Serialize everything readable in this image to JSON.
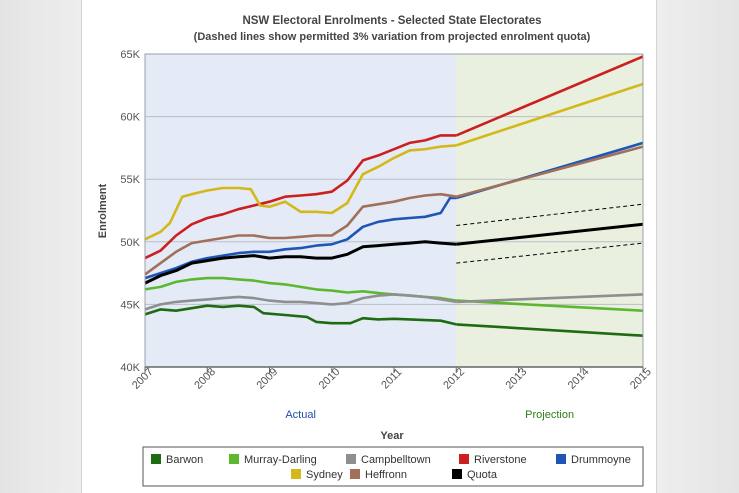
{
  "chart_data": {
    "type": "line",
    "title": "NSW Electoral Enrolments - Selected State Electorates",
    "subtitle": "(Dashed lines show permitted 3% variation from projected enrolment quota)",
    "xlabel": "Year",
    "ylabel": "Enrolment",
    "xlim": [
      2007,
      2015
    ],
    "ylim": [
      40000,
      65000
    ],
    "x_ticks": [
      "2007",
      "2008",
      "2009",
      "2010",
      "2011",
      "2012",
      "2013",
      "2014",
      "2015"
    ],
    "y_ticks": [
      "40K",
      "45K",
      "50K",
      "55K",
      "60K",
      "65K"
    ],
    "regions": [
      {
        "name": "Actual",
        "from": 2007,
        "to": 2012,
        "color": "#e4ebf7",
        "label_color": "#1f4fa8"
      },
      {
        "name": "Projection",
        "from": 2012,
        "to": 2015,
        "color": "#e9f0e0",
        "label_color": "#2e7d1a"
      }
    ],
    "series": [
      {
        "name": "Barwon",
        "color": "#1e6b12",
        "actual": [
          [
            2007,
            44200
          ],
          [
            2007.25,
            44600
          ],
          [
            2007.5,
            44500
          ],
          [
            2007.75,
            44700
          ],
          [
            2008,
            44900
          ],
          [
            2008.25,
            44800
          ],
          [
            2008.5,
            44900
          ],
          [
            2008.75,
            44800
          ],
          [
            2008.9,
            44300
          ],
          [
            2009.25,
            44150
          ],
          [
            2009.6,
            44000
          ],
          [
            2009.75,
            43600
          ],
          [
            2010,
            43500
          ],
          [
            2010.3,
            43500
          ],
          [
            2010.5,
            43900
          ],
          [
            2010.75,
            43800
          ],
          [
            2011,
            43850
          ],
          [
            2011.25,
            43800
          ],
          [
            2011.5,
            43750
          ],
          [
            2011.75,
            43700
          ],
          [
            2012,
            43400
          ]
        ],
        "projection": [
          [
            2012,
            43400
          ],
          [
            2015,
            42500
          ]
        ]
      },
      {
        "name": "Murray-Darling",
        "color": "#5cb82e",
        "actual": [
          [
            2007,
            46200
          ],
          [
            2007.25,
            46400
          ],
          [
            2007.5,
            46800
          ],
          [
            2007.75,
            47000
          ],
          [
            2008,
            47100
          ],
          [
            2008.25,
            47100
          ],
          [
            2008.5,
            47000
          ],
          [
            2008.75,
            46900
          ],
          [
            2009,
            46700
          ],
          [
            2009.25,
            46600
          ],
          [
            2009.5,
            46400
          ],
          [
            2009.75,
            46200
          ],
          [
            2010,
            46100
          ],
          [
            2010.25,
            45950
          ],
          [
            2010.5,
            46050
          ],
          [
            2010.75,
            45900
          ],
          [
            2011,
            45800
          ],
          [
            2011.25,
            45700
          ],
          [
            2011.5,
            45600
          ],
          [
            2011.75,
            45500
          ],
          [
            2012,
            45300
          ]
        ],
        "projection": [
          [
            2012,
            45300
          ],
          [
            2015,
            44500
          ]
        ]
      },
      {
        "name": "Campbelltown",
        "color": "#8f8f8f",
        "actual": [
          [
            2007,
            44600
          ],
          [
            2007.25,
            45000
          ],
          [
            2007.5,
            45200
          ],
          [
            2007.75,
            45300
          ],
          [
            2008,
            45400
          ],
          [
            2008.25,
            45500
          ],
          [
            2008.5,
            45600
          ],
          [
            2008.75,
            45500
          ],
          [
            2009,
            45300
          ],
          [
            2009.25,
            45200
          ],
          [
            2009.5,
            45200
          ],
          [
            2009.75,
            45100
          ],
          [
            2010,
            45000
          ],
          [
            2010.25,
            45100
          ],
          [
            2010.5,
            45500
          ],
          [
            2010.75,
            45700
          ],
          [
            2011,
            45800
          ],
          [
            2011.25,
            45700
          ],
          [
            2011.5,
            45600
          ],
          [
            2011.75,
            45400
          ],
          [
            2012,
            45200
          ]
        ],
        "projection": [
          [
            2012,
            45200
          ],
          [
            2015,
            45800
          ]
        ]
      },
      {
        "name": "Riverstone",
        "color": "#cc1f1f",
        "actual": [
          [
            2007,
            48700
          ],
          [
            2007.25,
            49300
          ],
          [
            2007.5,
            50500
          ],
          [
            2007.75,
            51400
          ],
          [
            2008,
            51900
          ],
          [
            2008.25,
            52200
          ],
          [
            2008.5,
            52600
          ],
          [
            2008.75,
            52900
          ],
          [
            2009,
            53200
          ],
          [
            2009.25,
            53600
          ],
          [
            2009.5,
            53700
          ],
          [
            2009.75,
            53800
          ],
          [
            2010,
            54000
          ],
          [
            2010.25,
            54900
          ],
          [
            2010.5,
            56500
          ],
          [
            2010.75,
            56900
          ],
          [
            2011,
            57400
          ],
          [
            2011.25,
            57900
          ],
          [
            2011.5,
            58100
          ],
          [
            2011.75,
            58500
          ],
          [
            2012,
            58500
          ]
        ],
        "projection": [
          [
            2012,
            58500
          ],
          [
            2015,
            64800
          ]
        ]
      },
      {
        "name": "Drummoyne",
        "color": "#1f55b5",
        "actual": [
          [
            2007,
            47100
          ],
          [
            2007.25,
            47500
          ],
          [
            2007.5,
            47900
          ],
          [
            2007.75,
            48400
          ],
          [
            2008,
            48700
          ],
          [
            2008.25,
            48900
          ],
          [
            2008.5,
            49100
          ],
          [
            2008.75,
            49200
          ],
          [
            2009,
            49200
          ],
          [
            2009.25,
            49400
          ],
          [
            2009.5,
            49500
          ],
          [
            2009.75,
            49700
          ],
          [
            2010,
            49800
          ],
          [
            2010.25,
            50200
          ],
          [
            2010.5,
            51200
          ],
          [
            2010.75,
            51600
          ],
          [
            2011,
            51800
          ],
          [
            2011.25,
            51900
          ],
          [
            2011.5,
            52000
          ],
          [
            2011.75,
            52300
          ],
          [
            2011.9,
            53500
          ],
          [
            2012,
            53500
          ]
        ],
        "projection": [
          [
            2012,
            53500
          ],
          [
            2015,
            57900
          ]
        ]
      },
      {
        "name": "Sydney",
        "color": "#d4b81a",
        "actual": [
          [
            2007,
            50200
          ],
          [
            2007.25,
            50800
          ],
          [
            2007.4,
            51500
          ],
          [
            2007.6,
            53600
          ],
          [
            2007.75,
            53800
          ],
          [
            2008,
            54100
          ],
          [
            2008.25,
            54300
          ],
          [
            2008.5,
            54300
          ],
          [
            2008.7,
            54200
          ],
          [
            2008.85,
            52900
          ],
          [
            2009,
            52800
          ],
          [
            2009.25,
            53200
          ],
          [
            2009.5,
            52400
          ],
          [
            2009.75,
            52400
          ],
          [
            2010,
            52300
          ],
          [
            2010.25,
            53100
          ],
          [
            2010.5,
            55400
          ],
          [
            2010.75,
            56000
          ],
          [
            2011,
            56700
          ],
          [
            2011.25,
            57300
          ],
          [
            2011.5,
            57400
          ],
          [
            2011.75,
            57600
          ],
          [
            2012,
            57700
          ]
        ],
        "projection": [
          [
            2012,
            57700
          ],
          [
            2015,
            62600
          ]
        ]
      },
      {
        "name": "Heffronn",
        "color": "#a0705a",
        "actual": [
          [
            2007,
            47400
          ],
          [
            2007.25,
            48300
          ],
          [
            2007.5,
            49200
          ],
          [
            2007.75,
            49900
          ],
          [
            2008,
            50100
          ],
          [
            2008.25,
            50300
          ],
          [
            2008.5,
            50500
          ],
          [
            2008.75,
            50500
          ],
          [
            2009,
            50300
          ],
          [
            2009.25,
            50300
          ],
          [
            2009.5,
            50400
          ],
          [
            2009.75,
            50500
          ],
          [
            2010,
            50500
          ],
          [
            2010.25,
            51300
          ],
          [
            2010.5,
            52800
          ],
          [
            2010.75,
            53000
          ],
          [
            2011,
            53200
          ],
          [
            2011.25,
            53500
          ],
          [
            2011.5,
            53700
          ],
          [
            2011.75,
            53800
          ],
          [
            2012,
            53600
          ]
        ],
        "projection": [
          [
            2012,
            53600
          ],
          [
            2015,
            57600
          ]
        ]
      },
      {
        "name": "Quota",
        "color": "#000000",
        "actual": [
          [
            2007,
            46700
          ],
          [
            2007.25,
            47300
          ],
          [
            2007.5,
            47700
          ],
          [
            2007.75,
            48300
          ],
          [
            2008,
            48500
          ],
          [
            2008.25,
            48700
          ],
          [
            2008.5,
            48800
          ],
          [
            2008.75,
            48900
          ],
          [
            2009,
            48700
          ],
          [
            2009.25,
            48800
          ],
          [
            2009.5,
            48800
          ],
          [
            2009.75,
            48700
          ],
          [
            2010,
            48700
          ],
          [
            2010.25,
            49000
          ],
          [
            2010.5,
            49600
          ],
          [
            2010.75,
            49700
          ],
          [
            2011,
            49800
          ],
          [
            2011.25,
            49900
          ],
          [
            2011.5,
            50000
          ],
          [
            2011.75,
            49900
          ],
          [
            2012,
            49800
          ]
        ],
        "projection": [
          [
            2012,
            49800
          ],
          [
            2015,
            51400
          ]
        ]
      }
    ],
    "bands": [
      {
        "name": "Quota +3%",
        "color": "#000000",
        "points": [
          [
            2012,
            51300
          ],
          [
            2015,
            53000
          ]
        ]
      },
      {
        "name": "Quota -3%",
        "color": "#000000",
        "points": [
          [
            2012,
            48300
          ],
          [
            2015,
            49900
          ]
        ]
      }
    ],
    "legend_position": "bottom"
  }
}
